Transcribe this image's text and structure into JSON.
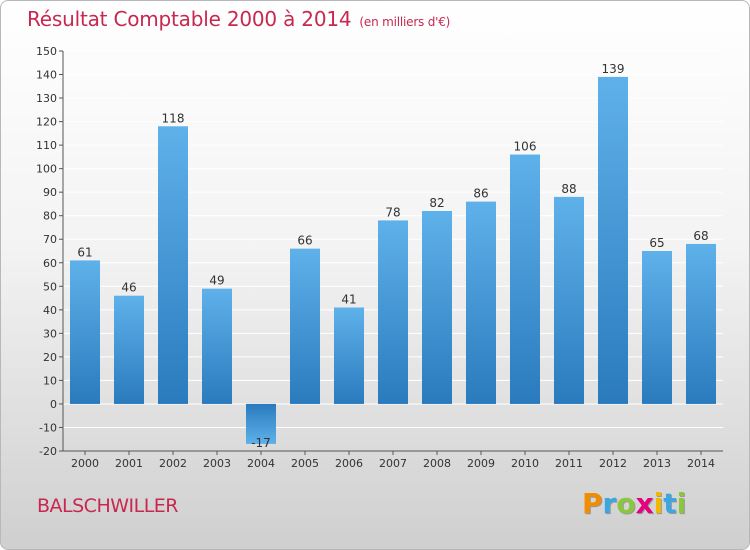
{
  "header": {
    "title": "Résultat Comptable 2000 à 2014",
    "subtitle": "(en milliers d'€)"
  },
  "footer": {
    "town": "BALSCHWILLER",
    "logo_letters": [
      "P",
      "r",
      "o",
      "x",
      "i",
      "t",
      "i"
    ],
    "logo_colors": [
      "#f28c00",
      "#3aa7e0",
      "#8cc63f",
      "#e5007e",
      "#f2b800",
      "#3aa7e0",
      "#8cc63f"
    ]
  },
  "chart_data": {
    "type": "bar",
    "categories": [
      "2000",
      "2001",
      "2002",
      "2003",
      "2004",
      "2005",
      "2006",
      "2007",
      "2008",
      "2009",
      "2010",
      "2011",
      "2012",
      "2013",
      "2014"
    ],
    "values": [
      61,
      46,
      118,
      49,
      -17,
      66,
      41,
      78,
      82,
      86,
      106,
      88,
      139,
      65,
      68
    ],
    "data_labels": [
      "61",
      "46",
      "118",
      "49",
      "-17",
      "66",
      "41",
      "78",
      "82",
      "86",
      "106",
      "88",
      "139",
      "65",
      "68"
    ],
    "ylim": [
      -20,
      150
    ],
    "yticks": [
      -20,
      -10,
      0,
      10,
      20,
      30,
      40,
      50,
      60,
      70,
      80,
      90,
      100,
      110,
      120,
      130,
      140,
      150
    ],
    "grid": true,
    "colors": {
      "bar_top": "#5fb1ea",
      "bar_bottom": "#2a7bbd",
      "grid": "#ffffff",
      "axis": "#555555"
    }
  }
}
